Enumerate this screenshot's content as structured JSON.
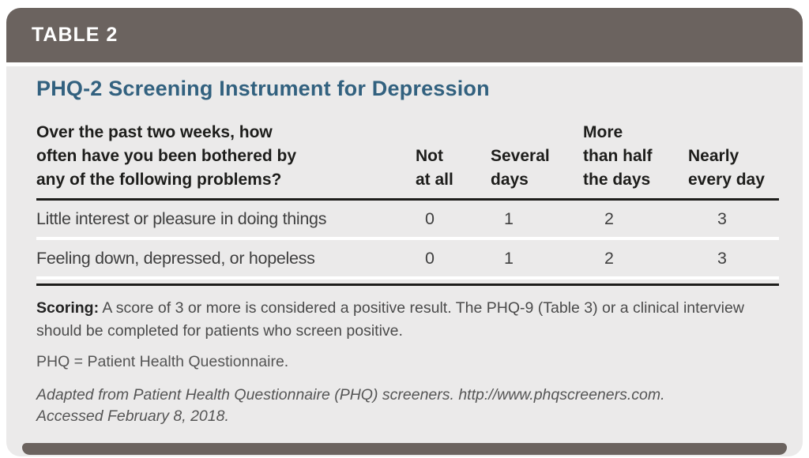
{
  "colors": {
    "header_bar": "#6b635f",
    "panel_background": "#ebeaea",
    "title_text": "#32617f",
    "rule": "#1d1d1b",
    "body_text": "#3f3f3f"
  },
  "header": {
    "tag": "TABLE 2"
  },
  "title": "PHQ-2 Screening Instrument for Depression",
  "table": {
    "question_header": "Over the past two weeks, how\noften have you been bothered by\nany of the following problems?",
    "column_headers": [
      "Not\nat all",
      "Several\ndays",
      "More\nthan half\nthe days",
      "Nearly\nevery day"
    ],
    "rows": [
      {
        "item": "Little interest or pleasure in doing things",
        "scores": [
          "0",
          "1",
          "2",
          "3"
        ]
      },
      {
        "item": "Feeling down, depressed, or hopeless",
        "scores": [
          "0",
          "1",
          "2",
          "3"
        ]
      }
    ]
  },
  "notes": {
    "scoring_label": "Scoring:",
    "scoring_text": " A score of 3 or more is considered a positive result. The PHQ-9 (Table 3) or a clinical interview should be completed for patients who screen positive.",
    "abbreviation": "PHQ = Patient Health Questionnaire.",
    "citation": "Adapted from Patient Health Questionnaire (PHQ) screeners. http://www.phqscreeners.com.\nAccessed February 8, 2018."
  }
}
